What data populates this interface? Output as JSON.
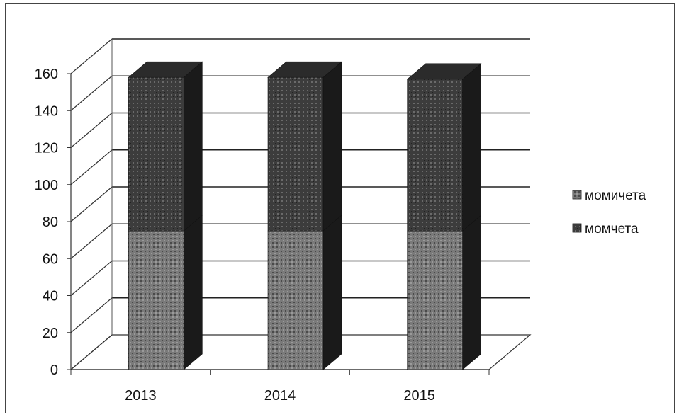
{
  "chart_data": {
    "type": "bar",
    "categories": [
      "2013",
      "2014",
      "2015"
    ],
    "series": [
      {
        "name": "момичета",
        "values": [
          75,
          75,
          75
        ],
        "color": "#6e6e6e"
      },
      {
        "name": "момчета",
        "values": [
          83,
          83,
          82
        ],
        "color": "#3a3a3a"
      }
    ],
    "stacked": true,
    "three_d": true,
    "ylim": [
      0,
      160
    ],
    "yticks": [
      0,
      20,
      40,
      60,
      80,
      100,
      120,
      140,
      160
    ],
    "grid": true,
    "legend_position": "right",
    "title": "",
    "xlabel": "",
    "ylabel": ""
  }
}
